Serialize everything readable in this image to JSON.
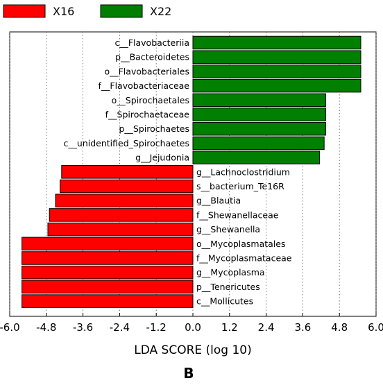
{
  "chart_data": {
    "type": "bar",
    "orientation": "horizontal",
    "xlabel": "LDA SCORE (log 10)",
    "xlim": [
      -6.0,
      6.0
    ],
    "xticks": [
      "-6.0",
      "-4.8",
      "-3.6",
      "-2.4",
      "-1.2",
      "0.0",
      "1.2",
      "2.4",
      "3.6",
      "4.8",
      "6.0"
    ],
    "grid": "vertical dotted",
    "legend": {
      "placement": "top-left",
      "entries": [
        {
          "name": "X16",
          "color": "#ff0000"
        },
        {
          "name": "X22",
          "color": "#007f00"
        }
      ]
    },
    "panel_label": "B",
    "bars": [
      {
        "label": "c__Flavobacteriia",
        "value": 5.5,
        "group": "X22"
      },
      {
        "label": "p__Bacteroidetes",
        "value": 5.5,
        "group": "X22"
      },
      {
        "label": "o__Flavobacteriales",
        "value": 5.5,
        "group": "X22"
      },
      {
        "label": "f__Flavobacteriaceae",
        "value": 5.5,
        "group": "X22"
      },
      {
        "label": "o__Spirochaetales",
        "value": 4.35,
        "group": "X22"
      },
      {
        "label": "f__Spirochaetaceae",
        "value": 4.35,
        "group": "X22"
      },
      {
        "label": "p__Spirochaetes",
        "value": 4.35,
        "group": "X22"
      },
      {
        "label": "c__unidentified_Spirochaetes",
        "value": 4.3,
        "group": "X22"
      },
      {
        "label": "g__Jejudonia",
        "value": 4.15,
        "group": "X22"
      },
      {
        "label": "g__Lachnoclostridium",
        "value": -4.3,
        "group": "X16"
      },
      {
        "label": "s__bacterium_Te16R",
        "value": -4.35,
        "group": "X16"
      },
      {
        "label": "g__Blautia",
        "value": -4.5,
        "group": "X16"
      },
      {
        "label": "f__Shewanellaceae",
        "value": -4.7,
        "group": "X16"
      },
      {
        "label": "g__Shewanella",
        "value": -4.75,
        "group": "X16"
      },
      {
        "label": "o__Mycoplasmatales",
        "value": -5.6,
        "group": "X16"
      },
      {
        "label": "f__Mycoplasmataceae",
        "value": -5.6,
        "group": "X16"
      },
      {
        "label": "g__Mycoplasma",
        "value": -5.6,
        "group": "X16"
      },
      {
        "label": "p__Tenericutes",
        "value": -5.6,
        "group": "X16"
      },
      {
        "label": "c__Mollicutes",
        "value": -5.6,
        "group": "X16"
      }
    ]
  }
}
